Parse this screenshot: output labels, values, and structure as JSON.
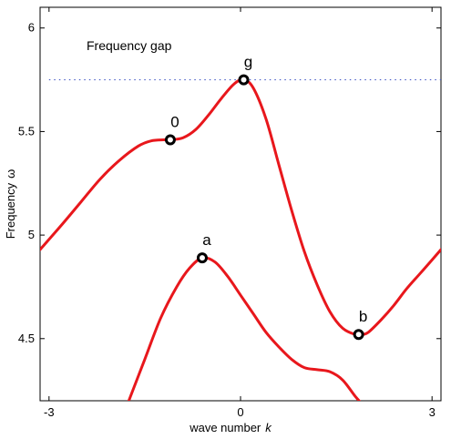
{
  "chart_data": {
    "type": "line",
    "title": "",
    "xlabel": "wave number",
    "xlabel_var": "k",
    "ylabel": "Frequency",
    "ylabel_var": "ω",
    "xlim": [
      -3.14,
      3.14
    ],
    "ylim": [
      4.2,
      6.1
    ],
    "xticks": [
      -3,
      0,
      3
    ],
    "xtick_labels": [
      "-3",
      "0",
      "3"
    ],
    "yticks": [
      4.5,
      5,
      5.5,
      6
    ],
    "ytick_labels": [
      "4.5",
      "5",
      "5.5",
      "6"
    ],
    "grid": false,
    "annotation": "Frequency gap",
    "colors": {
      "curve": "#e8171c",
      "gap_line": "#4a5ec8",
      "axes": "#000000"
    },
    "gap_line": {
      "y": 5.75,
      "style": "dotted"
    },
    "series": [
      {
        "x": [
          -3.14,
          -2.8,
          -2.5,
          -2.2,
          -1.9,
          -1.6,
          -1.4,
          -1.2,
          -1.1,
          -0.9,
          -0.7,
          -0.5,
          -0.3,
          -0.1,
          0.05,
          0.2,
          0.4,
          0.6,
          0.8,
          1.0,
          1.2,
          1.4,
          1.6,
          1.8,
          1.9,
          2.0,
          2.2,
          2.4,
          2.6,
          2.8,
          3.0,
          3.14
        ],
        "y": [
          4.93,
          5.05,
          5.16,
          5.27,
          5.36,
          5.43,
          5.455,
          5.46,
          5.46,
          5.47,
          5.51,
          5.58,
          5.66,
          5.73,
          5.75,
          5.71,
          5.56,
          5.34,
          5.12,
          4.92,
          4.76,
          4.63,
          4.55,
          4.52,
          4.52,
          4.53,
          4.59,
          4.66,
          4.74,
          4.81,
          4.88,
          4.93
        ]
      },
      {
        "x": [
          -1.75,
          -1.5,
          -1.25,
          -1.0,
          -0.8,
          -0.6,
          -0.4,
          -0.2,
          0.0,
          0.2,
          0.4,
          0.6,
          0.8,
          1.0,
          1.2,
          1.4,
          1.6,
          1.8,
          1.95
        ],
        "y": [
          4.2,
          4.4,
          4.6,
          4.75,
          4.84,
          4.89,
          4.87,
          4.8,
          4.71,
          4.62,
          4.53,
          4.46,
          4.4,
          4.36,
          4.35,
          4.34,
          4.3,
          4.22,
          4.17
        ]
      }
    ],
    "points": [
      {
        "label": "0",
        "x": -1.1,
        "y": 5.46
      },
      {
        "label": "g",
        "x": 0.05,
        "y": 5.75
      },
      {
        "label": "a",
        "x": -0.6,
        "y": 4.89
      },
      {
        "label": "b",
        "x": 1.85,
        "y": 4.52
      }
    ]
  }
}
